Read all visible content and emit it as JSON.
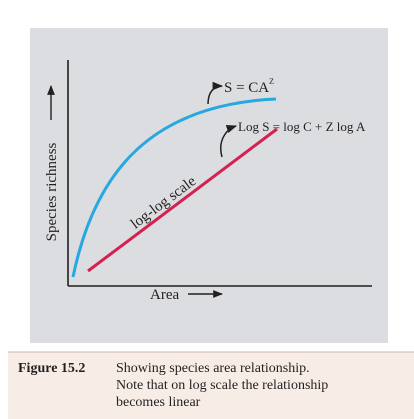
{
  "figure": {
    "curve_label": "S = CA",
    "curve_label_exponent": "Z",
    "line_label": "Log S = log C + Z log A",
    "scale_label": "log-log scale",
    "y_axis_label": "Species richness",
    "x_axis_label": "Area"
  },
  "caption": {
    "number": "Figure 15.2",
    "lines": [
      "Showing species area relationship.",
      "Note that on log scale the relationship",
      "becomes linear"
    ]
  }
}
